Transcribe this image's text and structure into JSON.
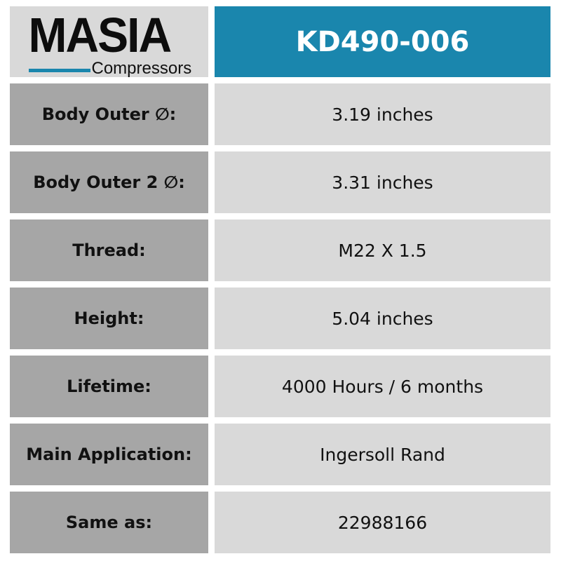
{
  "logo": {
    "brand": "MASIA",
    "subtitle": "Compressors",
    "accent_color": "#1a86ad"
  },
  "title": "KD490-006",
  "specs": [
    {
      "label": "Body Outer ∅:",
      "value": "3.19 inches"
    },
    {
      "label": "Body Outer 2 ∅:",
      "value": "3.31 inches"
    },
    {
      "label": "Thread:",
      "value": "M22 X 1.5"
    },
    {
      "label": "Height:",
      "value": "5.04 inches"
    },
    {
      "label": "Lifetime:",
      "value": "4000 Hours / 6 months"
    },
    {
      "label": "Main Application:",
      "value": "Ingersoll Rand"
    },
    {
      "label": "Same as:",
      "value": "22988166"
    }
  ]
}
